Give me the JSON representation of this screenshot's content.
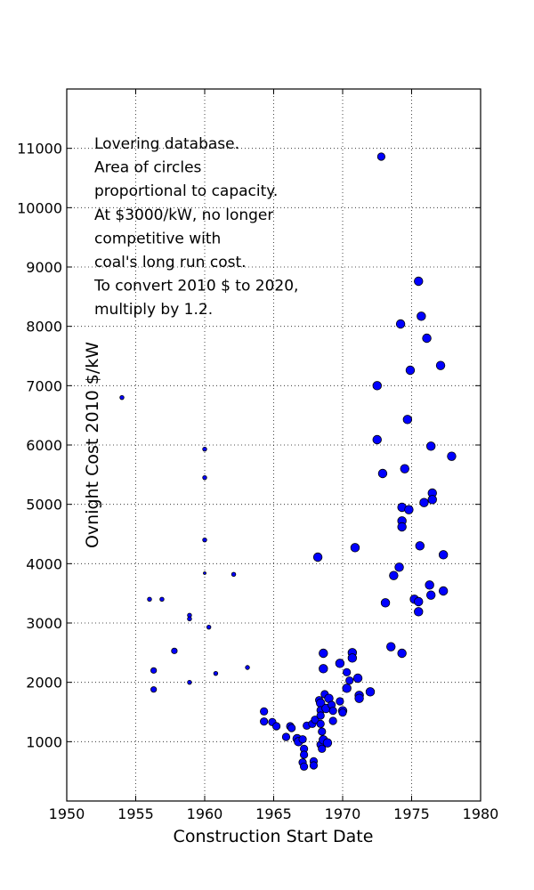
{
  "chart_data": {
    "type": "scatter",
    "xlabel": "Construction Start Date",
    "ylabel": "Ovnight Cost 2010 $/kW",
    "xlim": [
      1950,
      1980
    ],
    "ylim": [
      0,
      12000
    ],
    "xticks": [
      1950,
      1955,
      1960,
      1965,
      1970,
      1975,
      1980
    ],
    "yticks": [
      1000,
      2000,
      3000,
      4000,
      5000,
      6000,
      7000,
      8000,
      9000,
      10000,
      11000
    ],
    "grid": true,
    "annotation_lines": [
      "Lovering database.",
      "Area of circles",
      "proportional to capacity.",
      "At $3000/kW, no longer",
      "competitive with",
      "coal's long run cost.",
      "To convert 2010 $ to 2020,",
      "multiply by 1.2."
    ],
    "points": [
      {
        "x": 1954.0,
        "y": 6800,
        "size": "xs"
      },
      {
        "x": 1956.0,
        "y": 3400,
        "size": "xs"
      },
      {
        "x": 1956.3,
        "y": 2200,
        "size": "s"
      },
      {
        "x": 1956.3,
        "y": 1880,
        "size": "s"
      },
      {
        "x": 1956.9,
        "y": 3400,
        "size": "xs"
      },
      {
        "x": 1957.8,
        "y": 2530,
        "size": "s"
      },
      {
        "x": 1958.9,
        "y": 3130,
        "size": "xs"
      },
      {
        "x": 1958.9,
        "y": 3070,
        "size": "xs"
      },
      {
        "x": 1958.9,
        "y": 2000,
        "size": "xs"
      },
      {
        "x": 1960.0,
        "y": 5930,
        "size": "xs"
      },
      {
        "x": 1960.0,
        "y": 5450,
        "size": "xs"
      },
      {
        "x": 1960.0,
        "y": 4400,
        "size": "xs"
      },
      {
        "x": 1960.0,
        "y": 3840,
        "size": "xxs"
      },
      {
        "x": 1960.3,
        "y": 2930,
        "size": "xs"
      },
      {
        "x": 1960.8,
        "y": 2150,
        "size": "xs"
      },
      {
        "x": 1962.1,
        "y": 3820,
        "size": "xs"
      },
      {
        "x": 1963.1,
        "y": 2250,
        "size": "xs"
      },
      {
        "x": 1964.3,
        "y": 1510,
        "size": "m"
      },
      {
        "x": 1964.3,
        "y": 1340,
        "size": "m"
      },
      {
        "x": 1964.9,
        "y": 1330,
        "size": "m"
      },
      {
        "x": 1965.2,
        "y": 1260,
        "size": "m"
      },
      {
        "x": 1965.9,
        "y": 1080,
        "size": "m"
      },
      {
        "x": 1966.2,
        "y": 1260,
        "size": "m"
      },
      {
        "x": 1966.3,
        "y": 1230,
        "size": "m"
      },
      {
        "x": 1966.7,
        "y": 1050,
        "size": "l"
      },
      {
        "x": 1966.8,
        "y": 1000,
        "size": "l"
      },
      {
        "x": 1967.1,
        "y": 1040,
        "size": "m"
      },
      {
        "x": 1967.2,
        "y": 880,
        "size": "m"
      },
      {
        "x": 1967.2,
        "y": 780,
        "size": "m"
      },
      {
        "x": 1967.1,
        "y": 650,
        "size": "m"
      },
      {
        "x": 1967.2,
        "y": 580,
        "size": "m"
      },
      {
        "x": 1967.4,
        "y": 1270,
        "size": "m"
      },
      {
        "x": 1967.8,
        "y": 1300,
        "size": "m"
      },
      {
        "x": 1967.9,
        "y": 670,
        "size": "m"
      },
      {
        "x": 1967.9,
        "y": 600,
        "size": "m"
      },
      {
        "x": 1968.0,
        "y": 1370,
        "size": "m"
      },
      {
        "x": 1968.2,
        "y": 4110,
        "size": "l"
      },
      {
        "x": 1968.3,
        "y": 1700,
        "size": "m"
      },
      {
        "x": 1968.4,
        "y": 1650,
        "size": "l"
      },
      {
        "x": 1968.4,
        "y": 1530,
        "size": "m"
      },
      {
        "x": 1968.4,
        "y": 1440,
        "size": "m"
      },
      {
        "x": 1968.4,
        "y": 1300,
        "size": "m"
      },
      {
        "x": 1968.5,
        "y": 1170,
        "size": "m"
      },
      {
        "x": 1968.4,
        "y": 950,
        "size": "m"
      },
      {
        "x": 1968.5,
        "y": 880,
        "size": "m"
      },
      {
        "x": 1968.6,
        "y": 1030,
        "size": "l"
      },
      {
        "x": 1968.6,
        "y": 2490,
        "size": "l"
      },
      {
        "x": 1968.6,
        "y": 2230,
        "size": "l"
      },
      {
        "x": 1968.7,
        "y": 1800,
        "size": "m"
      },
      {
        "x": 1968.8,
        "y": 1560,
        "size": "l"
      },
      {
        "x": 1968.9,
        "y": 980,
        "size": "l"
      },
      {
        "x": 1969.0,
        "y": 1730,
        "size": "l"
      },
      {
        "x": 1969.2,
        "y": 1620,
        "size": "m"
      },
      {
        "x": 1969.3,
        "y": 1520,
        "size": "m"
      },
      {
        "x": 1969.3,
        "y": 1350,
        "size": "m"
      },
      {
        "x": 1969.8,
        "y": 2320,
        "size": "l"
      },
      {
        "x": 1969.8,
        "y": 1680,
        "size": "m"
      },
      {
        "x": 1970.0,
        "y": 1520,
        "size": "l"
      },
      {
        "x": 1970.0,
        "y": 1490,
        "size": "m"
      },
      {
        "x": 1970.3,
        "y": 2170,
        "size": "m"
      },
      {
        "x": 1970.3,
        "y": 1900,
        "size": "l"
      },
      {
        "x": 1970.5,
        "y": 2030,
        "size": "m"
      },
      {
        "x": 1970.7,
        "y": 2500,
        "size": "l"
      },
      {
        "x": 1970.7,
        "y": 2410,
        "size": "l"
      },
      {
        "x": 1970.9,
        "y": 4270,
        "size": "l"
      },
      {
        "x": 1971.1,
        "y": 2070,
        "size": "l"
      },
      {
        "x": 1971.2,
        "y": 1780,
        "size": "l"
      },
      {
        "x": 1971.2,
        "y": 1730,
        "size": "l"
      },
      {
        "x": 1972.0,
        "y": 1840,
        "size": "l"
      },
      {
        "x": 1972.5,
        "y": 7000,
        "size": "l"
      },
      {
        "x": 1972.5,
        "y": 6090,
        "size": "l"
      },
      {
        "x": 1972.8,
        "y": 10860,
        "size": "m"
      },
      {
        "x": 1972.9,
        "y": 5520,
        "size": "l"
      },
      {
        "x": 1973.1,
        "y": 3340,
        "size": "l"
      },
      {
        "x": 1973.5,
        "y": 2600,
        "size": "l"
      },
      {
        "x": 1973.7,
        "y": 3800,
        "size": "l"
      },
      {
        "x": 1974.1,
        "y": 3940,
        "size": "l"
      },
      {
        "x": 1974.2,
        "y": 8040,
        "size": "l"
      },
      {
        "x": 1974.3,
        "y": 4950,
        "size": "l"
      },
      {
        "x": 1974.3,
        "y": 4720,
        "size": "l"
      },
      {
        "x": 1974.3,
        "y": 4620,
        "size": "l"
      },
      {
        "x": 1974.3,
        "y": 2490,
        "size": "l"
      },
      {
        "x": 1974.5,
        "y": 5600,
        "size": "l"
      },
      {
        "x": 1974.7,
        "y": 6430,
        "size": "l"
      },
      {
        "x": 1974.8,
        "y": 4910,
        "size": "l"
      },
      {
        "x": 1974.9,
        "y": 7260,
        "size": "l"
      },
      {
        "x": 1975.2,
        "y": 3400,
        "size": "l"
      },
      {
        "x": 1975.5,
        "y": 3360,
        "size": "l"
      },
      {
        "x": 1975.5,
        "y": 3190,
        "size": "l"
      },
      {
        "x": 1975.5,
        "y": 8760,
        "size": "l"
      },
      {
        "x": 1975.6,
        "y": 4300,
        "size": "l"
      },
      {
        "x": 1975.7,
        "y": 8170,
        "size": "l"
      },
      {
        "x": 1975.9,
        "y": 5030,
        "size": "l"
      },
      {
        "x": 1976.1,
        "y": 7800,
        "size": "l"
      },
      {
        "x": 1976.3,
        "y": 3640,
        "size": "l"
      },
      {
        "x": 1976.4,
        "y": 3470,
        "size": "l"
      },
      {
        "x": 1976.4,
        "y": 5980,
        "size": "l"
      },
      {
        "x": 1976.5,
        "y": 5190,
        "size": "l"
      },
      {
        "x": 1976.5,
        "y": 5080,
        "size": "l"
      },
      {
        "x": 1977.1,
        "y": 7340,
        "size": "l"
      },
      {
        "x": 1977.3,
        "y": 4150,
        "size": "l"
      },
      {
        "x": 1977.3,
        "y": 3540,
        "size": "l"
      },
      {
        "x": 1977.9,
        "y": 5810,
        "size": "l"
      }
    ]
  }
}
